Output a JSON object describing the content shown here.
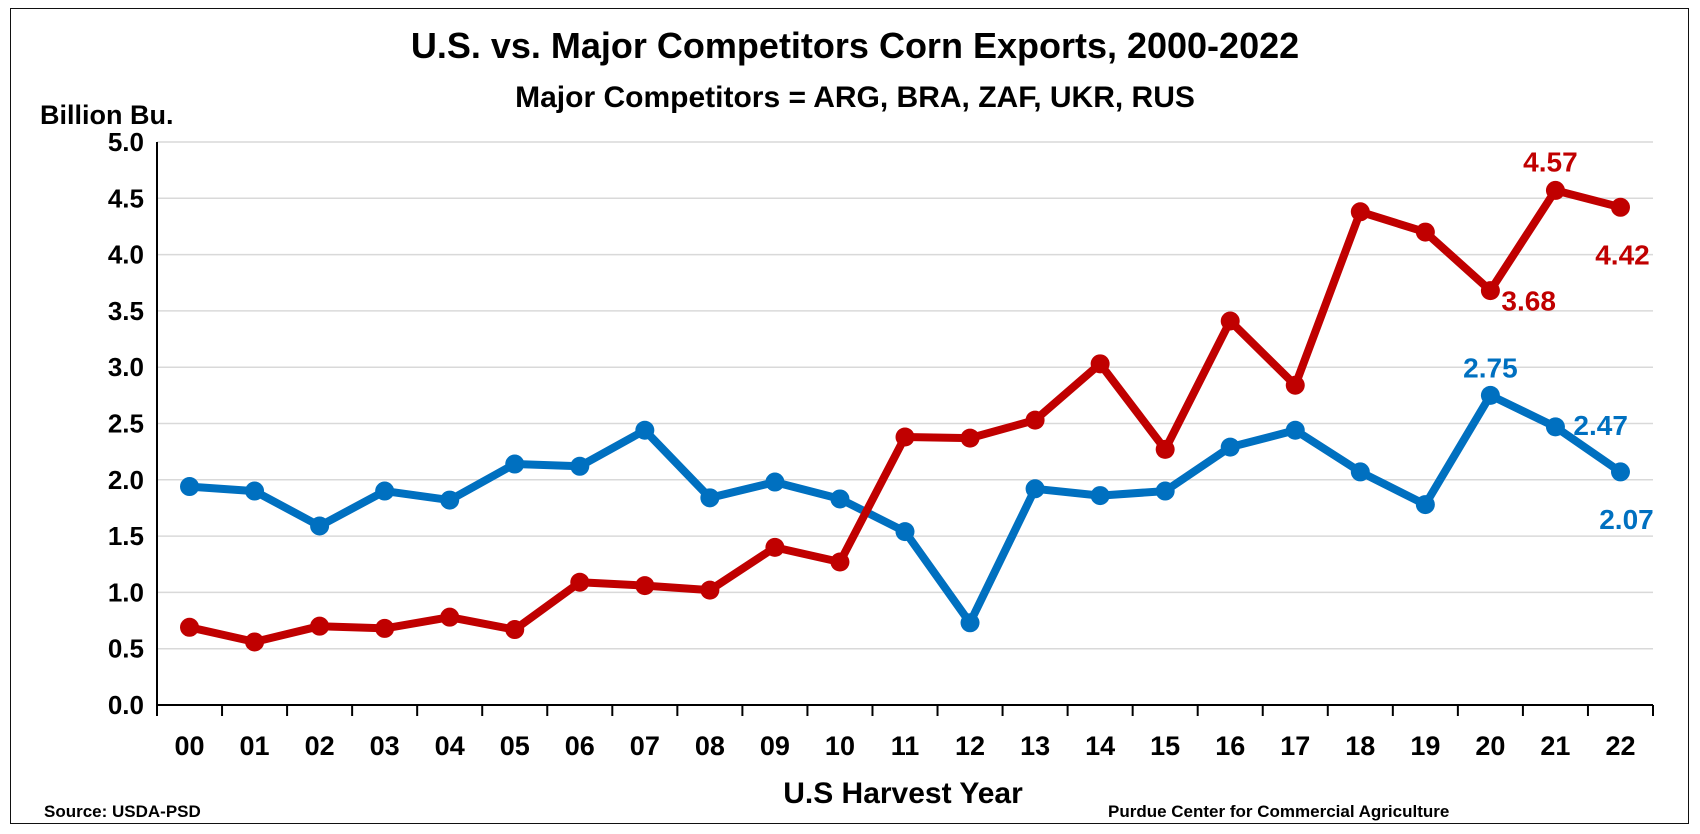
{
  "chart_data": {
    "type": "line",
    "title": "U.S. vs. Major Competitors Corn Exports, 2000-2022",
    "subtitle": "Major Competitors = ARG, BRA, ZAF, UKR, RUS",
    "ylabel": "Billion Bu.",
    "xlabel": "U.S Harvest Year",
    "ylim": [
      0,
      5
    ],
    "yticks": [
      "0.0",
      "0.5",
      "1.0",
      "1.5",
      "2.0",
      "2.5",
      "3.0",
      "3.5",
      "4.0",
      "4.5",
      "5.0"
    ],
    "categories": [
      "00",
      "01",
      "02",
      "03",
      "04",
      "05",
      "06",
      "07",
      "08",
      "09",
      "10",
      "11",
      "12",
      "13",
      "14",
      "15",
      "16",
      "17",
      "18",
      "19",
      "20",
      "21",
      "22"
    ],
    "grid": "horizontal",
    "series": [
      {
        "color": "#0070C0",
        "values": [
          1.94,
          1.9,
          1.59,
          1.9,
          1.82,
          2.14,
          2.12,
          2.44,
          1.84,
          1.98,
          1.83,
          1.54,
          0.73,
          1.92,
          1.86,
          1.9,
          2.29,
          2.44,
          2.07,
          1.78,
          2.75,
          2.47,
          2.07
        ]
      },
      {
        "color": "#C00000",
        "values": [
          0.69,
          0.56,
          0.7,
          0.68,
          0.78,
          0.67,
          1.09,
          1.06,
          1.02,
          1.4,
          1.27,
          2.38,
          2.37,
          2.53,
          3.03,
          2.27,
          3.41,
          2.84,
          4.38,
          4.2,
          3.68,
          4.57,
          4.42
        ]
      }
    ],
    "data_labels": [
      {
        "series": 0,
        "index": 20,
        "text": "2.75"
      },
      {
        "series": 0,
        "index": 21,
        "text": "2.47"
      },
      {
        "series": 0,
        "index": 22,
        "text": "2.07"
      },
      {
        "series": 1,
        "index": 20,
        "text": "3.68"
      },
      {
        "series": 1,
        "index": 21,
        "text": "4.57"
      },
      {
        "series": 1,
        "index": 22,
        "text": "4.42"
      }
    ]
  },
  "footer": {
    "source": "Source: USDA-PSD",
    "credit": "Purdue Center for Commercial Agriculture"
  }
}
